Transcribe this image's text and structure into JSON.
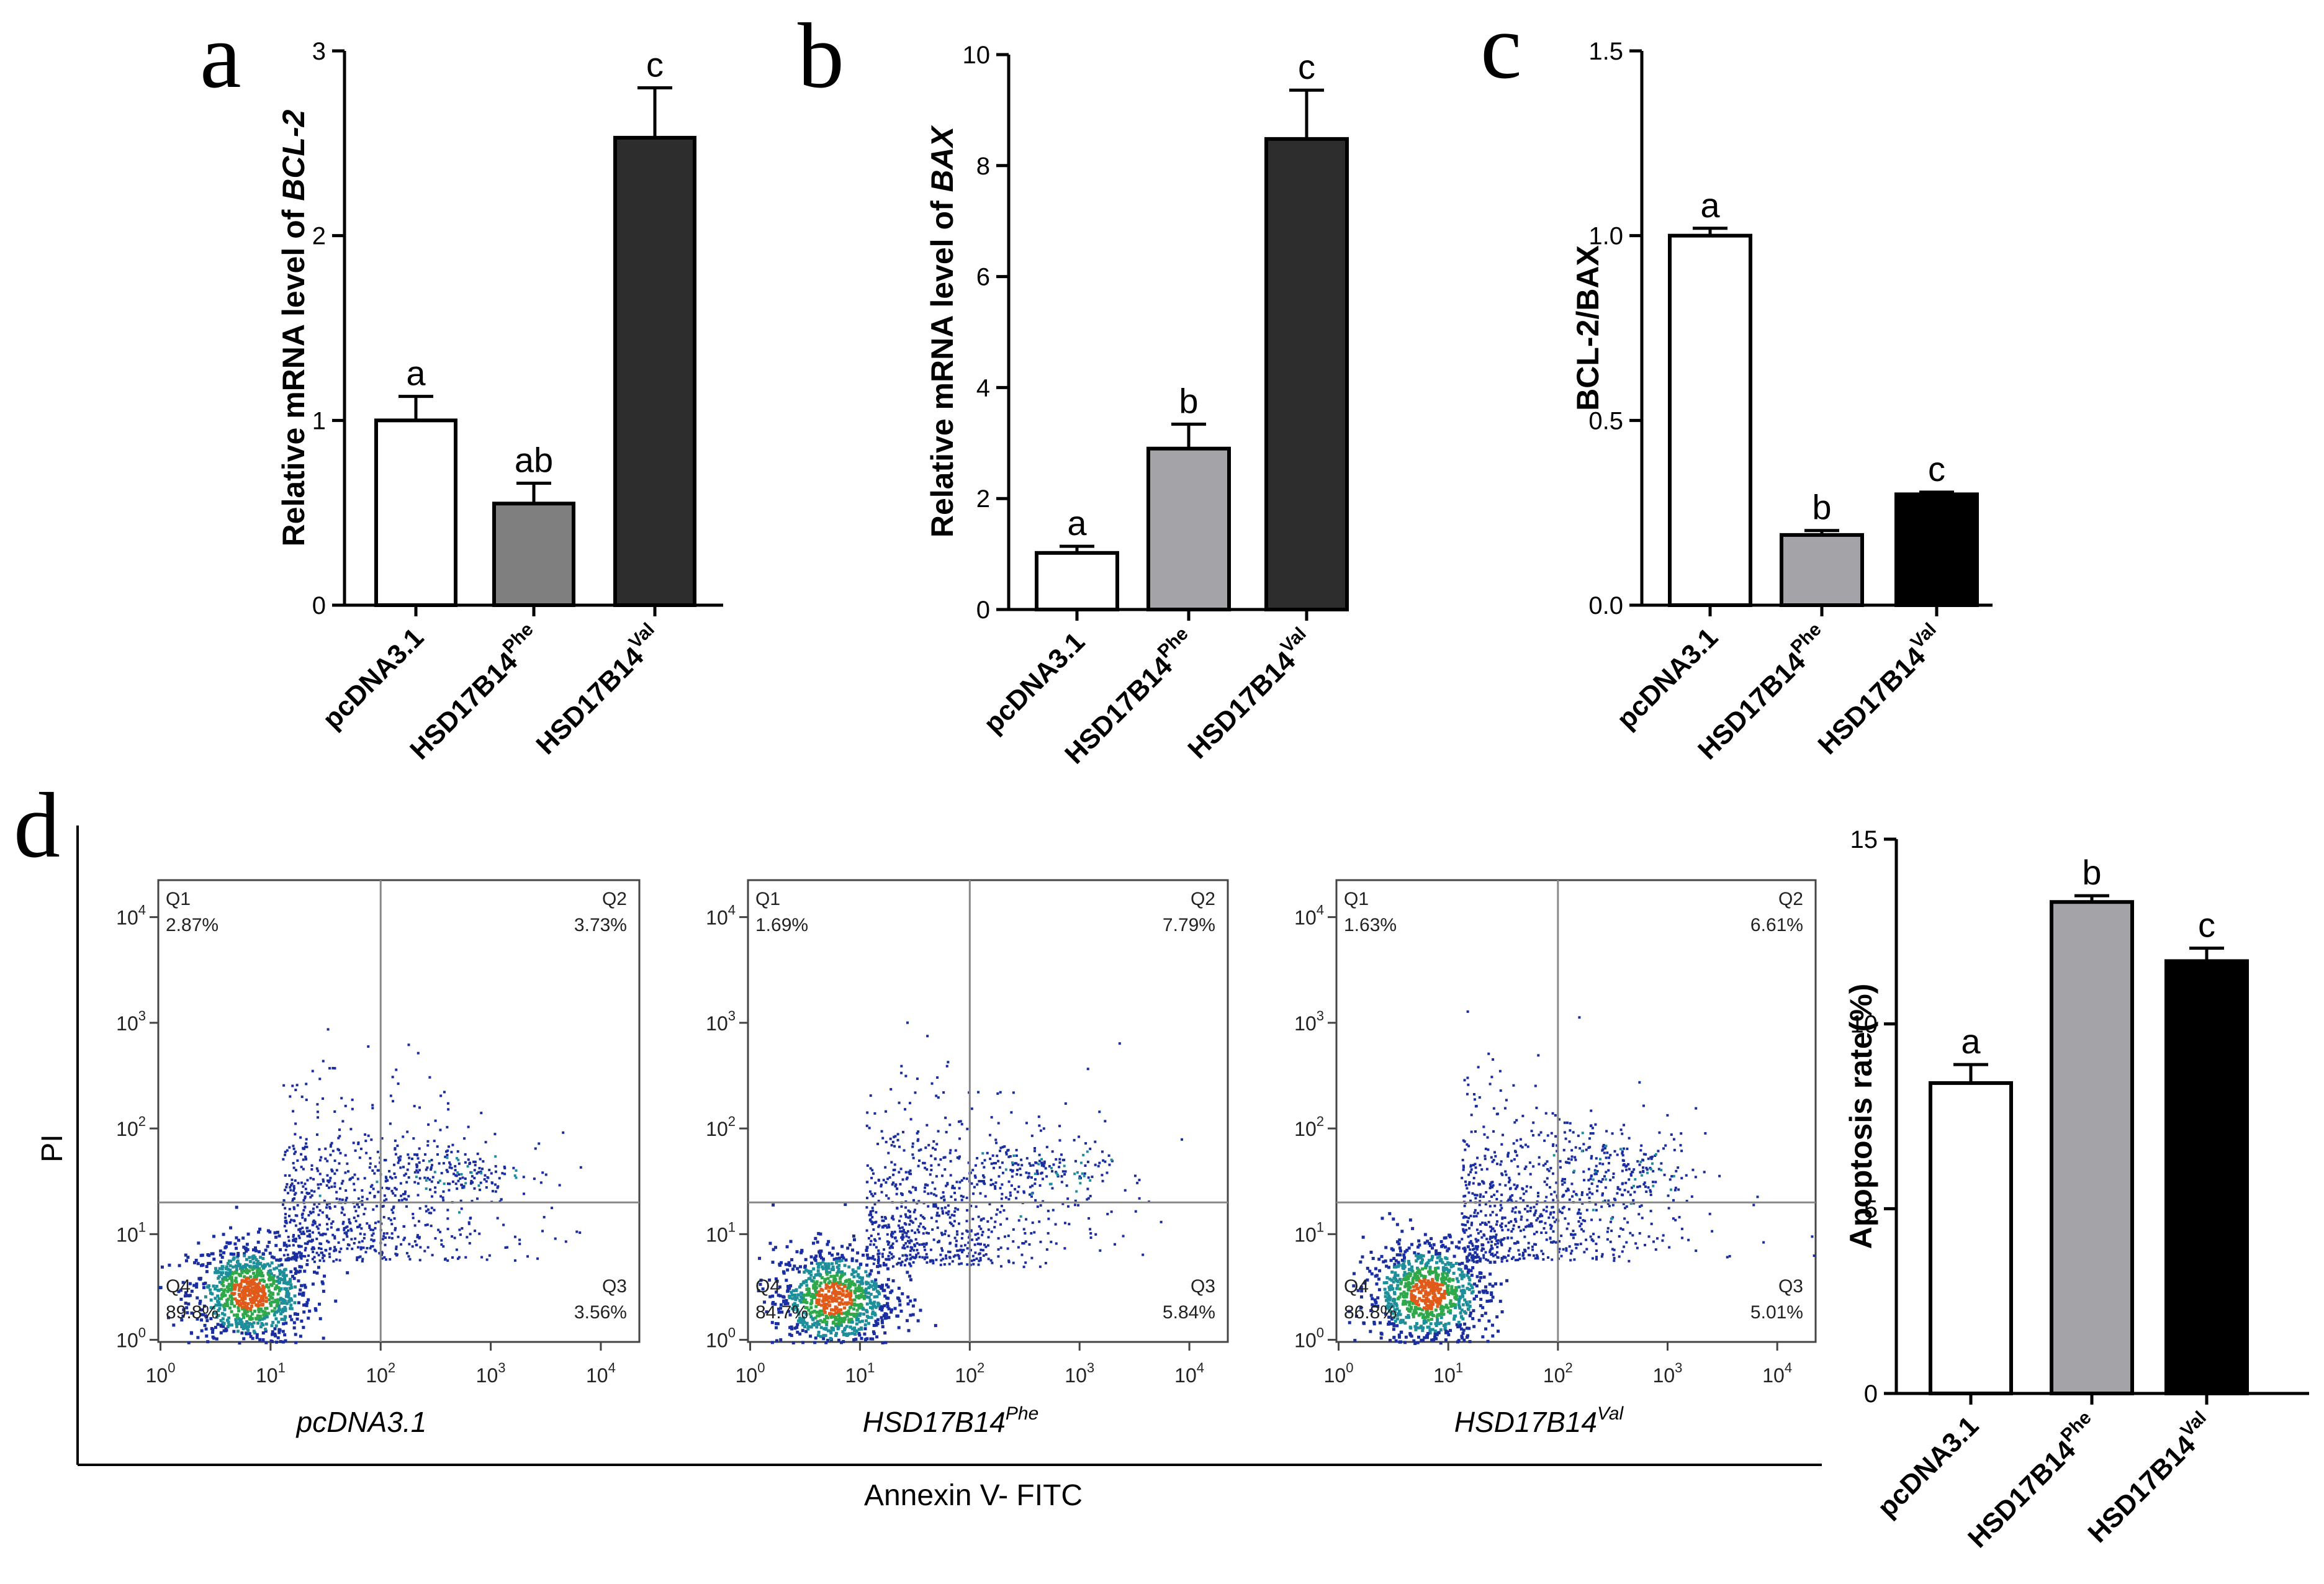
{
  "panel_letters": [
    "a",
    "b",
    "c",
    "d"
  ],
  "chart_data": [
    {
      "id": "a",
      "type": "bar",
      "categories": [
        {
          "base": "pcDNA3.1",
          "sup": ""
        },
        {
          "base": "HSD17B14",
          "sup": "Phe"
        },
        {
          "base": "HSD17B14",
          "sup": "Val"
        }
      ],
      "values": [
        1.0,
        0.55,
        2.53
      ],
      "errors": [
        0.13,
        0.11,
        0.27
      ],
      "significance": [
        "a",
        "ab",
        "c"
      ],
      "bar_colors": [
        "#ffffff",
        "#7f7f7f",
        "#2d2d2d"
      ],
      "ylabel_prefix": "Relative mRNA level of",
      "ylabel_gene": "BCL-2",
      "ylim": [
        0,
        3
      ],
      "yticks": [
        0,
        1,
        2,
        3
      ],
      "ytick_labels": [
        "0",
        "1",
        "2",
        "3"
      ]
    },
    {
      "id": "b",
      "type": "bar",
      "categories": [
        {
          "base": "pcDNA3.1",
          "sup": ""
        },
        {
          "base": "HSD17B14",
          "sup": "Phe"
        },
        {
          "base": "HSD17B14",
          "sup": "Val"
        }
      ],
      "values": [
        1.02,
        2.9,
        8.48
      ],
      "errors": [
        0.12,
        0.44,
        0.88
      ],
      "significance": [
        "a",
        "b",
        "c"
      ],
      "bar_colors": [
        "#ffffff",
        "#a3a3a8",
        "#2d2d2d"
      ],
      "ylabel_prefix": "Relative mRNA level of",
      "ylabel_gene": "BAX",
      "ylim": [
        0,
        10
      ],
      "yticks": [
        0,
        2,
        4,
        6,
        8,
        10
      ],
      "ytick_labels": [
        "0",
        "2",
        "4",
        "6",
        "8",
        "10"
      ]
    },
    {
      "id": "c",
      "type": "bar",
      "categories": [
        {
          "base": "pcDNA3.1",
          "sup": ""
        },
        {
          "base": "HSD17B14",
          "sup": "Phe"
        },
        {
          "base": "HSD17B14",
          "sup": "Val"
        }
      ],
      "values": [
        1.0,
        0.19,
        0.3
      ],
      "errors": [
        0.02,
        0.012,
        0.006
      ],
      "significance": [
        "a",
        "b",
        "c"
      ],
      "bar_colors": [
        "#ffffff",
        "#a3a3a8",
        "#000000"
      ],
      "ylabel_prefix": "BCL-2/BAX",
      "ylabel_gene": "",
      "ylim": [
        0,
        1.5
      ],
      "yticks": [
        0,
        0.5,
        1.0,
        1.5
      ],
      "ytick_labels": [
        "0.0",
        "0.5",
        "1.0",
        "1.5"
      ]
    },
    {
      "id": "d-bar",
      "type": "bar",
      "categories": [
        {
          "base": "pcDNA3.1",
          "sup": ""
        },
        {
          "base": "HSD17B14",
          "sup": "Phe"
        },
        {
          "base": "HSD17B14",
          "sup": "Val"
        }
      ],
      "values": [
        8.4,
        13.3,
        11.7
      ],
      "errors": [
        0.5,
        0.17,
        0.35
      ],
      "significance": [
        "a",
        "b",
        "c"
      ],
      "bar_colors": [
        "#ffffff",
        "#a3a3a8",
        "#000000"
      ],
      "ylabel_prefix": "Apoptosis rate(%)",
      "ylabel_gene": "",
      "ylim": [
        0,
        15
      ],
      "yticks": [
        0,
        5,
        10,
        15
      ],
      "ytick_labels": [
        "0",
        "5",
        "10",
        "15"
      ]
    }
  ],
  "flow_cytometry": {
    "y_axis_title": "PI",
    "x_axis_title": "Annexin V- FITC",
    "log_ticks": [
      0,
      1,
      2,
      3,
      4
    ],
    "tick_base": "10",
    "quadrant_labels": [
      "Q1",
      "Q2",
      "Q3",
      "Q4"
    ],
    "quadrant_gate": {
      "x_log": 2.0,
      "y_log": 1.3
    },
    "plots": [
      {
        "name_base": "pcDNA3.1",
        "name_sup": "",
        "q1": "2.87%",
        "q2": "3.73%",
        "q3": "3.56%",
        "q4": "89.8%",
        "cluster": {
          "x_log": 0.8,
          "y_log": 0.45
        }
      },
      {
        "name_base": "HSD17B14",
        "name_sup": "Phe",
        "q1": "1.69%",
        "q2": "7.79%",
        "q3": "5.84%",
        "q4": "84.7%",
        "cluster": {
          "x_log": 0.75,
          "y_log": 0.4
        }
      },
      {
        "name_base": "HSD17B14",
        "name_sup": "Val",
        "q1": "1.63%",
        "q2": "6.61%",
        "q3": "5.01%",
        "q4": "86.8%",
        "cluster": {
          "x_log": 0.8,
          "y_log": 0.45
        }
      }
    ]
  }
}
